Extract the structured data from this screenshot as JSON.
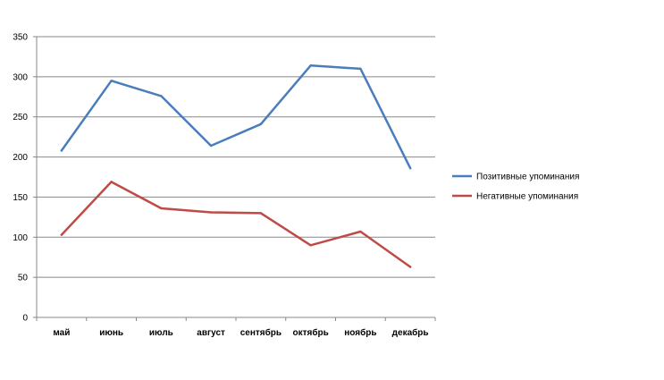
{
  "chart_data": {
    "type": "line",
    "categories": [
      "май",
      "июнь",
      "июль",
      "август",
      "сентябрь",
      "октябрь",
      "ноябрь",
      "декабрь"
    ],
    "series": [
      {
        "name": "Позитивные упоминания",
        "color": "#4a7ebb",
        "values": [
          208,
          295,
          276,
          214,
          241,
          314,
          310,
          186
        ]
      },
      {
        "name": "Негативные упоминания",
        "color": "#be4b48",
        "values": [
          103,
          169,
          136,
          131,
          130,
          90,
          107,
          63
        ]
      }
    ],
    "ylim": [
      0,
      350
    ],
    "yticks": [
      0,
      50,
      100,
      150,
      200,
      250,
      300,
      350
    ],
    "grid": true,
    "legend": "right",
    "title": "",
    "xlabel": "",
    "ylabel": ""
  }
}
